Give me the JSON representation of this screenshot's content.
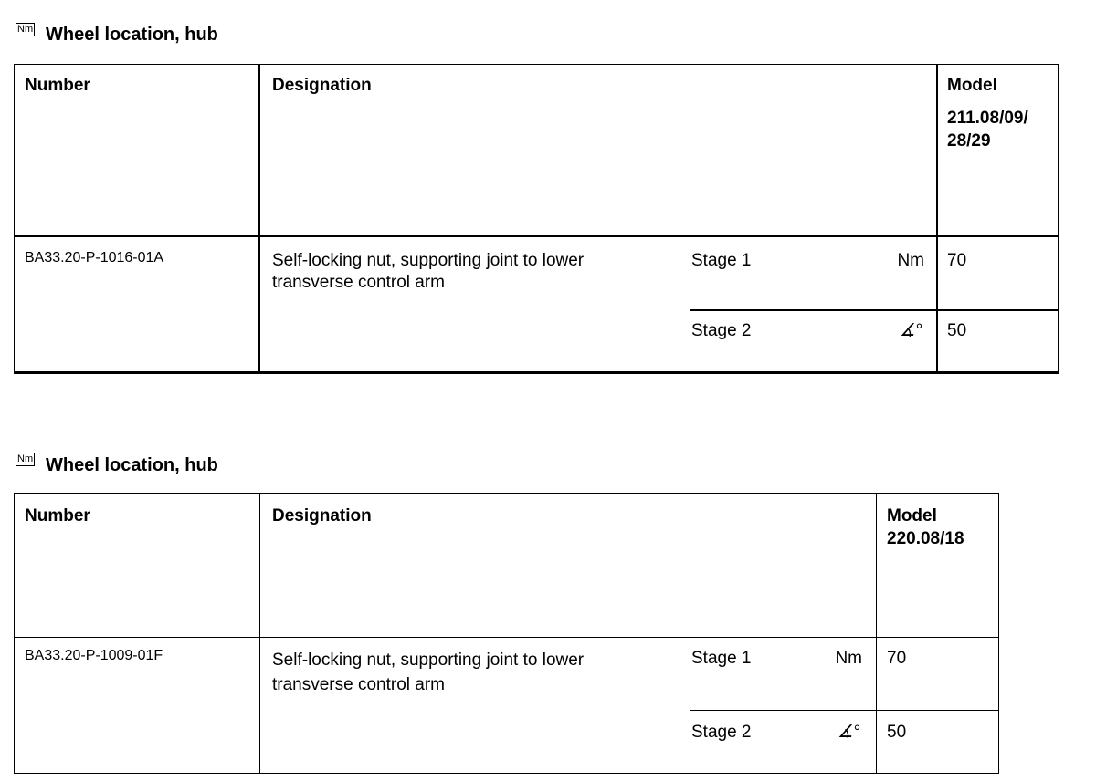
{
  "sections": [
    {
      "icon": "Nm",
      "title": "Wheel location, hub",
      "headers": {
        "number": "Number",
        "designation": "Designation",
        "model_label": "Model",
        "model_value": "211.08/09/\n28/29"
      },
      "row": {
        "number": "BA33.20-P-1016-01A",
        "designation": "Self-locking nut, supporting joint to lower transverse control arm",
        "stages": [
          {
            "label": "Stage 1",
            "unit": "Nm",
            "unit_icon": "",
            "value": "70"
          },
          {
            "label": "Stage 2",
            "unit": "",
            "unit_icon": "angle-degree-icon",
            "value": "50"
          }
        ]
      }
    },
    {
      "icon": "Nm",
      "title": "Wheel location, hub",
      "headers": {
        "number": "Number",
        "designation": "Designation",
        "model_label": "Model",
        "model_value": "220.08/18"
      },
      "row": {
        "number": "BA33.20-P-1009-01F",
        "designation": "Self-locking nut, supporting joint to lower transverse control arm",
        "stages": [
          {
            "label": "Stage 1",
            "unit": "Nm",
            "unit_icon": "",
            "value": "70"
          },
          {
            "label": "Stage 2",
            "unit": "",
            "unit_icon": "angle-degree-icon",
            "value": "50"
          }
        ]
      }
    }
  ]
}
